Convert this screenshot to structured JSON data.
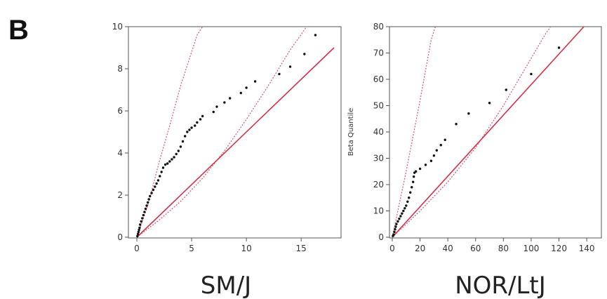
{
  "figure": {
    "panel_letter": "B"
  },
  "chart_data": [
    {
      "type": "scatter",
      "title": "SM/J",
      "xlabel": "",
      "ylabel": "",
      "xlim": [
        0,
        18
      ],
      "ylim": [
        0,
        10
      ],
      "xticks": [
        0,
        5,
        10,
        15
      ],
      "yticks": [
        0,
        2,
        4,
        6,
        8,
        10
      ],
      "grid": false,
      "reference_line": {
        "slope": 0.5,
        "color": "#d6304a"
      },
      "confidence_bounds": {
        "upper": [
          [
            0,
            0
          ],
          [
            1,
            1.5
          ],
          [
            2,
            3.5
          ],
          [
            3,
            5.3
          ],
          [
            4,
            7.2
          ],
          [
            5,
            8.8
          ],
          [
            5.5,
            9.6
          ],
          [
            6,
            10
          ]
        ],
        "lower": [
          [
            0,
            0
          ],
          [
            2,
            0.8
          ],
          [
            4,
            1.7
          ],
          [
            6,
            2.8
          ],
          [
            8,
            4.1
          ],
          [
            10,
            5.6
          ],
          [
            12,
            7.2
          ],
          [
            14,
            8.9
          ],
          [
            15.5,
            10
          ]
        ],
        "color": "#e0607a"
      },
      "points": [
        [
          0.05,
          0.05
        ],
        [
          0.1,
          0.15
        ],
        [
          0.15,
          0.25
        ],
        [
          0.2,
          0.35
        ],
        [
          0.25,
          0.45
        ],
        [
          0.3,
          0.6
        ],
        [
          0.4,
          0.75
        ],
        [
          0.5,
          0.9
        ],
        [
          0.6,
          1.05
        ],
        [
          0.7,
          1.2
        ],
        [
          0.8,
          1.35
        ],
        [
          0.9,
          1.5
        ],
        [
          1.0,
          1.65
        ],
        [
          1.1,
          1.8
        ],
        [
          1.2,
          1.95
        ],
        [
          1.35,
          2.1
        ],
        [
          1.5,
          2.25
        ],
        [
          1.65,
          2.4
        ],
        [
          1.8,
          2.55
        ],
        [
          1.95,
          2.7
        ],
        [
          2.1,
          2.9
        ],
        [
          2.25,
          3.1
        ],
        [
          2.4,
          3.3
        ],
        [
          2.6,
          3.45
        ],
        [
          2.8,
          3.5
        ],
        [
          3.0,
          3.6
        ],
        [
          3.2,
          3.7
        ],
        [
          3.4,
          3.8
        ],
        [
          3.6,
          3.95
        ],
        [
          3.8,
          4.1
        ],
        [
          4.0,
          4.3
        ],
        [
          4.2,
          4.55
        ],
        [
          4.4,
          4.8
        ],
        [
          4.6,
          5.0
        ],
        [
          4.8,
          5.1
        ],
        [
          5.0,
          5.2
        ],
        [
          5.3,
          5.3
        ],
        [
          5.5,
          5.45
        ],
        [
          5.8,
          5.6
        ],
        [
          6.0,
          5.75
        ],
        [
          7.0,
          5.95
        ],
        [
          7.3,
          6.2
        ],
        [
          8.0,
          6.4
        ],
        [
          8.5,
          6.6
        ],
        [
          9.5,
          6.85
        ],
        [
          10.0,
          7.1
        ],
        [
          10.8,
          7.4
        ],
        [
          13.0,
          7.75
        ],
        [
          14.0,
          8.1
        ],
        [
          15.3,
          8.7
        ],
        [
          16.3,
          9.6
        ]
      ]
    },
    {
      "type": "scatter",
      "title": "NOR/LtJ",
      "xlabel": "",
      "ylabel": "Beta Quantile",
      "xlim": [
        0,
        145
      ],
      "ylim": [
        0,
        80
      ],
      "xticks": [
        0,
        20,
        40,
        60,
        80,
        100,
        120,
        140
      ],
      "yticks": [
        0,
        10,
        20,
        30,
        40,
        50,
        60,
        70,
        80
      ],
      "grid": false,
      "reference_line": {
        "slope": 0.58,
        "color": "#d6304a"
      },
      "confidence_bounds": {
        "upper": [
          [
            0,
            0
          ],
          [
            10,
            25
          ],
          [
            20,
            52
          ],
          [
            28,
            75
          ],
          [
            31,
            80
          ]
        ],
        "lower": [
          [
            0,
            0
          ],
          [
            20,
            10
          ],
          [
            40,
            21
          ],
          [
            60,
            34
          ],
          [
            80,
            50
          ],
          [
            100,
            68
          ],
          [
            110,
            77
          ],
          [
            114,
            80
          ]
        ],
        "color": "#e0607a"
      },
      "points": [
        [
          0.5,
          0.5
        ],
        [
          1,
          1
        ],
        [
          1.5,
          2
        ],
        [
          2,
          3
        ],
        [
          2.5,
          4
        ],
        [
          3,
          5
        ],
        [
          4,
          6
        ],
        [
          5,
          7
        ],
        [
          6,
          8
        ],
        [
          7,
          9
        ],
        [
          8,
          10
        ],
        [
          9,
          11
        ],
        [
          10,
          12
        ],
        [
          11,
          13.5
        ],
        [
          12,
          15
        ],
        [
          13,
          17
        ],
        [
          14,
          19
        ],
        [
          15,
          21
        ],
        [
          15.5,
          23
        ],
        [
          16,
          24.5
        ],
        [
          17,
          25
        ],
        [
          20,
          26
        ],
        [
          24,
          27.5
        ],
        [
          28,
          29
        ],
        [
          30,
          31
        ],
        [
          32,
          33
        ],
        [
          35,
          35
        ],
        [
          38,
          37
        ],
        [
          46,
          43
        ],
        [
          55,
          47
        ],
        [
          70,
          51
        ],
        [
          82,
          56
        ],
        [
          100,
          62
        ],
        [
          120,
          72
        ]
      ]
    }
  ]
}
